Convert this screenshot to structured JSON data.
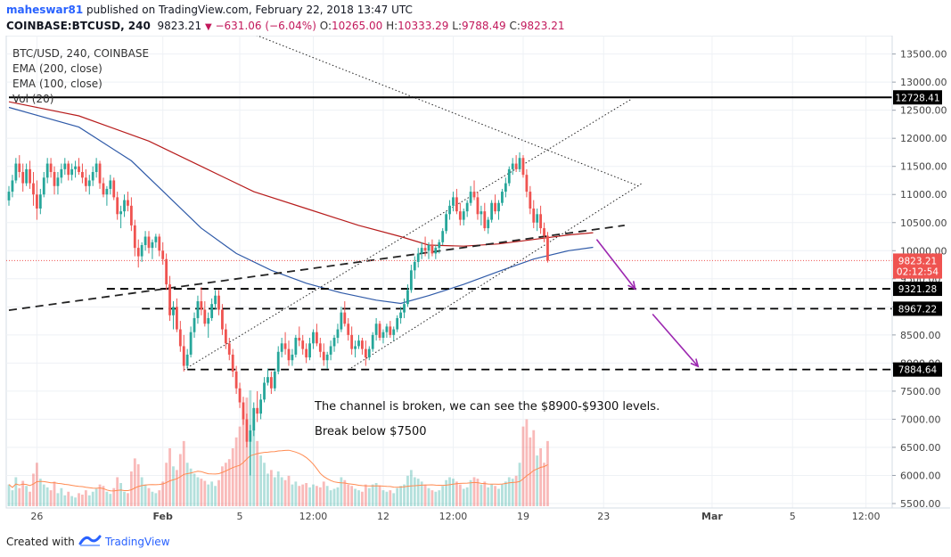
{
  "header": {
    "author": "maheswar81",
    "published_text": " published on TradingView.com, February 22, 2018 13:47 UTC",
    "symbol": "COINBASE:BTCUSD, 240",
    "last": "9823.21",
    "change": "−631.06 (−6.04%)",
    "o_label": "O:",
    "o_value": "10265.00",
    "h_label": "H:",
    "h_value": "10333.29",
    "l_label": "L:",
    "l_value": "9788.49",
    "c_label": "C:",
    "c_value": "9823.21"
  },
  "legend": {
    "title": "BTC/USD, 240, COINBASE",
    "ema200": "EMA (200, close)",
    "ema100": "EMA (100, close)",
    "vol": "Vol (20)"
  },
  "annotations": {
    "line1": "The channel is broken, we can see the $8900-$9300 levels.",
    "line2": "Break below $7500"
  },
  "footer": {
    "created_with": "Created with",
    "brand": "TradingView"
  },
  "colors": {
    "up": "#26a69a",
    "down": "#ef5350",
    "ema200": "#b71c1c",
    "ema100": "#2f5aa8",
    "arrow": "#9c27b0",
    "volume_ma": "#ff8a50"
  },
  "chart_data": {
    "type": "candlestick",
    "title": "BTC/USD, 240, COINBASE",
    "y_range": [
      5500,
      13700
    ],
    "y_ticks": [
      {
        "v": 13500,
        "label": "13500.00"
      },
      {
        "v": 13000,
        "label": "13000.00"
      },
      {
        "v": 12500,
        "label": "12500.00"
      },
      {
        "v": 12000,
        "label": "12000.00"
      },
      {
        "v": 11500,
        "label": "11500.00"
      },
      {
        "v": 11000,
        "label": "11000.00"
      },
      {
        "v": 10500,
        "label": "10500.00"
      },
      {
        "v": 10000,
        "label": "10000.00"
      },
      {
        "v": 9500,
        "label": "9500.00"
      },
      {
        "v": 9000,
        "label": "9000.00"
      },
      {
        "v": 8500,
        "label": "8500.00"
      },
      {
        "v": 8000,
        "label": "8000.00"
      },
      {
        "v": 7500,
        "label": "7500.00"
      },
      {
        "v": 7000,
        "label": "7000.00"
      },
      {
        "v": 6500,
        "label": "6500.00"
      },
      {
        "v": 6000,
        "label": "6000.00"
      },
      {
        "v": 5500,
        "label": "5500.00"
      }
    ],
    "x_ticks": [
      {
        "i": 8,
        "label": "26"
      },
      {
        "i": 44,
        "label": "Feb"
      },
      {
        "i": 66,
        "label": "5"
      },
      {
        "i": 87,
        "label": "12:00"
      },
      {
        "i": 107,
        "label": "12"
      },
      {
        "i": 127,
        "label": "12:00"
      },
      {
        "i": 147,
        "label": "19"
      },
      {
        "i": 170,
        "label": "23"
      },
      {
        "i": 201,
        "label": "Mar"
      },
      {
        "i": 224,
        "label": "5"
      },
      {
        "i": 245,
        "label": "12:00"
      }
    ],
    "price_labels": [
      {
        "v": 12728.41,
        "label": "12728.41",
        "kind": "line"
      },
      {
        "v": 9823.21,
        "label": "9823.21",
        "kind": "last"
      },
      {
        "v": 9630,
        "label": "02:12:54",
        "kind": "timer"
      },
      {
        "v": 9321.28,
        "label": "9321.28",
        "kind": "line"
      },
      {
        "v": 8967.22,
        "label": "8967.22",
        "kind": "line"
      },
      {
        "v": 7884.64,
        "label": "7884.64",
        "kind": "line"
      }
    ],
    "horizontal_levels": [
      {
        "v": 12728.41,
        "from_i": 0,
        "style": "solid"
      },
      {
        "v": 9321.28,
        "from_i": 28,
        "style": "dashed"
      },
      {
        "v": 8967.22,
        "from_i": 38,
        "style": "dashed"
      },
      {
        "v": 7884.64,
        "from_i": 51,
        "style": "dashed"
      }
    ],
    "trend_lines": [
      {
        "p1": [
          0,
          8940
        ],
        "p2": [
          176,
          10450
        ],
        "style": "dashed"
      },
      {
        "p1": [
          50,
          7880
        ],
        "p2": [
          178,
          12700
        ],
        "style": "dotted"
      },
      {
        "p1": [
          97,
          7880
        ],
        "p2": [
          181,
          11200
        ],
        "style": "dotted"
      },
      {
        "p1": [
          64,
          14000
        ],
        "p2": [
          180,
          11150
        ],
        "style": "dotted"
      }
    ],
    "arrows": [
      {
        "p1": [
          168,
          10200
        ],
        "p2": [
          179,
          9320
        ]
      },
      {
        "p1": [
          184,
          8870
        ],
        "p2": [
          197,
          7940
        ]
      }
    ],
    "candles": [
      [
        10895,
        11150,
        10800,
        11050,
        30
      ],
      [
        11050,
        11350,
        10950,
        11250,
        22
      ],
      [
        11250,
        11650,
        11200,
        11550,
        40
      ],
      [
        11550,
        11700,
        11300,
        11400,
        25
      ],
      [
        11400,
        11550,
        11050,
        11200,
        35
      ],
      [
        11200,
        11550,
        11150,
        11450,
        28
      ],
      [
        11450,
        11600,
        11100,
        11200,
        20
      ],
      [
        11200,
        11400,
        10800,
        11000,
        45
      ],
      [
        11000,
        11250,
        10550,
        10750,
        60
      ],
      [
        10750,
        11100,
        10650,
        11000,
        38
      ],
      [
        11000,
        11400,
        10950,
        11300,
        30
      ],
      [
        11300,
        11650,
        11200,
        11550,
        26
      ],
      [
        11550,
        11650,
        11300,
        11400,
        22
      ],
      [
        11400,
        11500,
        11000,
        11150,
        34
      ],
      [
        11150,
        11400,
        11000,
        11300,
        18
      ],
      [
        11300,
        11550,
        11200,
        11450,
        25
      ],
      [
        11450,
        11650,
        11350,
        11550,
        15
      ],
      [
        11550,
        11600,
        11250,
        11350,
        20
      ],
      [
        11350,
        11550,
        11250,
        11450,
        14
      ],
      [
        11450,
        11600,
        11300,
        11500,
        12
      ],
      [
        11500,
        11650,
        11350,
        11400,
        18
      ],
      [
        11400,
        11550,
        11200,
        11300,
        16
      ],
      [
        11300,
        11450,
        11050,
        11150,
        22
      ],
      [
        11150,
        11350,
        11000,
        11250,
        15
      ],
      [
        11250,
        11500,
        11150,
        11400,
        20
      ],
      [
        11400,
        11650,
        11300,
        11550,
        24
      ],
      [
        11550,
        11600,
        11100,
        11200,
        30
      ],
      [
        11200,
        11300,
        10950,
        11000,
        28
      ],
      [
        11000,
        11150,
        10800,
        11100,
        20
      ],
      [
        11100,
        11350,
        11000,
        11250,
        17
      ],
      [
        11250,
        11300,
        10900,
        10950,
        25
      ],
      [
        10950,
        11050,
        10550,
        10650,
        40
      ],
      [
        10650,
        10800,
        10400,
        10700,
        32
      ],
      [
        10700,
        11000,
        10600,
        10900,
        20
      ],
      [
        10900,
        11050,
        10700,
        10800,
        18
      ],
      [
        10800,
        10950,
        10350,
        10450,
        48
      ],
      [
        10450,
        10550,
        9900,
        10050,
        66
      ],
      [
        10050,
        10200,
        9700,
        9900,
        58
      ],
      [
        9900,
        10150,
        9800,
        10100,
        40
      ],
      [
        10100,
        10350,
        10000,
        10250,
        30
      ],
      [
        10250,
        10350,
        9950,
        10050,
        25
      ],
      [
        10050,
        10200,
        9850,
        10150,
        20
      ],
      [
        10150,
        10300,
        10050,
        10250,
        18
      ],
      [
        10250,
        10300,
        9900,
        10000,
        22
      ],
      [
        10000,
        10150,
        9750,
        9850,
        34
      ],
      [
        9850,
        9950,
        9300,
        9400,
        60
      ],
      [
        9400,
        9550,
        8750,
        8850,
        80
      ],
      [
        8850,
        9100,
        8600,
        9000,
        55
      ],
      [
        9000,
        9150,
        8550,
        8600,
        50
      ],
      [
        8600,
        8750,
        8200,
        8300,
        72
      ],
      [
        8300,
        8500,
        7850,
        7950,
        90
      ],
      [
        7950,
        8250,
        7900,
        8150,
        60
      ],
      [
        8150,
        8650,
        8100,
        8550,
        52
      ],
      [
        8550,
        8900,
        8450,
        8800,
        45
      ],
      [
        8800,
        9200,
        8700,
        9100,
        40
      ],
      [
        9100,
        9350,
        8850,
        8950,
        38
      ],
      [
        8950,
        9100,
        8650,
        8700,
        35
      ],
      [
        8700,
        8900,
        8450,
        8800,
        30
      ],
      [
        8800,
        9150,
        8750,
        9050,
        34
      ],
      [
        9050,
        9300,
        8950,
        9200,
        28
      ],
      [
        9200,
        9300,
        8850,
        8950,
        36
      ],
      [
        8950,
        9050,
        8500,
        8600,
        55
      ],
      [
        8600,
        8700,
        8250,
        8350,
        60
      ],
      [
        8350,
        8450,
        8050,
        8150,
        65
      ],
      [
        8150,
        8250,
        7750,
        7850,
        80
      ],
      [
        7850,
        7950,
        7450,
        7550,
        95
      ],
      [
        7550,
        7650,
        7200,
        7300,
        110
      ],
      [
        7300,
        7400,
        6900,
        7000,
        130
      ],
      [
        7000,
        7100,
        6500,
        6600,
        150
      ],
      [
        6600,
        6900,
        6000,
        6800,
        160
      ],
      [
        6800,
        7300,
        6700,
        7200,
        120
      ],
      [
        7200,
        7500,
        6950,
        7100,
        90
      ],
      [
        7100,
        7450,
        7000,
        7350,
        70
      ],
      [
        7350,
        7750,
        7300,
        7650,
        60
      ],
      [
        7650,
        7900,
        7600,
        7750,
        45
      ],
      [
        7750,
        7850,
        7450,
        7550,
        50
      ],
      [
        7550,
        7900,
        7500,
        7850,
        40
      ],
      [
        7850,
        8300,
        7800,
        8200,
        48
      ],
      [
        8200,
        8450,
        8100,
        8350,
        40
      ],
      [
        8350,
        8550,
        8150,
        8250,
        36
      ],
      [
        8250,
        8400,
        7950,
        8050,
        42
      ],
      [
        8050,
        8250,
        7950,
        8150,
        30
      ],
      [
        8150,
        8500,
        8100,
        8450,
        34
      ],
      [
        8450,
        8650,
        8300,
        8400,
        28
      ],
      [
        8400,
        8500,
        8150,
        8250,
        30
      ],
      [
        8250,
        8350,
        8000,
        8100,
        32
      ],
      [
        8100,
        8450,
        8050,
        8350,
        26
      ],
      [
        8350,
        8600,
        8250,
        8550,
        30
      ],
      [
        8550,
        8700,
        8300,
        8350,
        28
      ],
      [
        8350,
        8450,
        8100,
        8200,
        26
      ],
      [
        8200,
        8350,
        7950,
        8050,
        34
      ],
      [
        8050,
        8200,
        7900,
        8150,
        28
      ],
      [
        8150,
        8400,
        8050,
        8300,
        22
      ],
      [
        8300,
        8500,
        8200,
        8450,
        24
      ],
      [
        8450,
        8700,
        8350,
        8600,
        26
      ],
      [
        8600,
        9000,
        8550,
        8900,
        40
      ],
      [
        8900,
        9100,
        8650,
        8700,
        36
      ],
      [
        8700,
        8800,
        8400,
        8500,
        30
      ],
      [
        8500,
        8650,
        8150,
        8250,
        28
      ],
      [
        8250,
        8400,
        8100,
        8300,
        24
      ],
      [
        8300,
        8500,
        8250,
        8400,
        22
      ],
      [
        8400,
        8450,
        8150,
        8250,
        20
      ],
      [
        8250,
        8400,
        7950,
        8100,
        30
      ],
      [
        8100,
        8300,
        8050,
        8250,
        25
      ],
      [
        8250,
        8550,
        8200,
        8500,
        30
      ],
      [
        8500,
        8800,
        8400,
        8700,
        32
      ],
      [
        8700,
        8750,
        8400,
        8450,
        28
      ],
      [
        8450,
        8600,
        8350,
        8550,
        22
      ],
      [
        8550,
        8700,
        8450,
        8650,
        20
      ],
      [
        8650,
        8750,
        8450,
        8500,
        22
      ],
      [
        8500,
        8650,
        8400,
        8600,
        18
      ],
      [
        8600,
        8850,
        8550,
        8800,
        25
      ],
      [
        8800,
        9000,
        8700,
        8900,
        28
      ],
      [
        8900,
        9150,
        8800,
        9050,
        30
      ],
      [
        9050,
        9400,
        9000,
        9300,
        42
      ],
      [
        9300,
        9750,
        9250,
        9650,
        50
      ],
      [
        9650,
        9900,
        9500,
        9800,
        40
      ],
      [
        9800,
        10050,
        9700,
        9950,
        38
      ],
      [
        9950,
        10150,
        9850,
        10050,
        34
      ],
      [
        10050,
        10250,
        9900,
        10000,
        30
      ],
      [
        10000,
        10150,
        9850,
        10100,
        25
      ],
      [
        10100,
        10200,
        9900,
        9950,
        22
      ],
      [
        9950,
        10100,
        9850,
        10050,
        20
      ],
      [
        10050,
        10200,
        9950,
        10150,
        22
      ],
      [
        10150,
        10400,
        10100,
        10350,
        28
      ],
      [
        10350,
        10700,
        10300,
        10650,
        36
      ],
      [
        10650,
        10900,
        10550,
        10800,
        40
      ],
      [
        10800,
        11050,
        10700,
        10950,
        38
      ],
      [
        10950,
        11100,
        10650,
        10700,
        34
      ],
      [
        10700,
        10850,
        10450,
        10550,
        30
      ],
      [
        10550,
        10750,
        10450,
        10700,
        24
      ],
      [
        10700,
        10900,
        10600,
        10850,
        26
      ],
      [
        10850,
        11150,
        10800,
        11050,
        36
      ],
      [
        11050,
        11250,
        10900,
        10950,
        40
      ],
      [
        10950,
        11050,
        10550,
        10650,
        38
      ],
      [
        10650,
        10800,
        10450,
        10700,
        30
      ],
      [
        10700,
        10850,
        10350,
        10400,
        34
      ],
      [
        10400,
        10600,
        10300,
        10550,
        26
      ],
      [
        10550,
        10900,
        10500,
        10850,
        30
      ],
      [
        10850,
        11000,
        10650,
        10700,
        28
      ],
      [
        10700,
        10900,
        10550,
        10850,
        24
      ],
      [
        10850,
        11100,
        10800,
        11050,
        30
      ],
      [
        11050,
        11300,
        10950,
        11200,
        34
      ],
      [
        11200,
        11500,
        11150,
        11450,
        40
      ],
      [
        11450,
        11650,
        11350,
        11550,
        38
      ],
      [
        11550,
        11700,
        11400,
        11450,
        42
      ],
      [
        11450,
        11750,
        11400,
        11650,
        60
      ],
      [
        11650,
        11700,
        11300,
        11350,
        110
      ],
      [
        11350,
        11450,
        10950,
        11050,
        120
      ],
      [
        11050,
        11150,
        10650,
        10750,
        95
      ],
      [
        10750,
        10900,
        10400,
        10500,
        105
      ],
      [
        10500,
        10750,
        10350,
        10650,
        70
      ],
      [
        10650,
        10800,
        10300,
        10400,
        80
      ],
      [
        10400,
        10500,
        10150,
        10265,
        60
      ],
      [
        10265,
        10333,
        9788,
        9823,
        90
      ]
    ],
    "volume_scale_max": 160,
    "ema200_points": [
      [
        0,
        12650
      ],
      [
        20,
        12400
      ],
      [
        40,
        11950
      ],
      [
        55,
        11500
      ],
      [
        70,
        11050
      ],
      [
        85,
        10750
      ],
      [
        100,
        10450
      ],
      [
        112,
        10250
      ],
      [
        120,
        10100
      ],
      [
        130,
        10080
      ],
      [
        140,
        10120
      ],
      [
        150,
        10200
      ],
      [
        160,
        10280
      ],
      [
        167,
        10320
      ]
    ],
    "ema100_points": [
      [
        0,
        12550
      ],
      [
        20,
        12200
      ],
      [
        35,
        11600
      ],
      [
        45,
        11000
      ],
      [
        55,
        10400
      ],
      [
        65,
        9950
      ],
      [
        75,
        9650
      ],
      [
        85,
        9420
      ],
      [
        95,
        9250
      ],
      [
        105,
        9120
      ],
      [
        112,
        9060
      ],
      [
        120,
        9200
      ],
      [
        130,
        9400
      ],
      [
        140,
        9630
      ],
      [
        150,
        9850
      ],
      [
        160,
        10000
      ],
      [
        167,
        10060
      ]
    ]
  }
}
